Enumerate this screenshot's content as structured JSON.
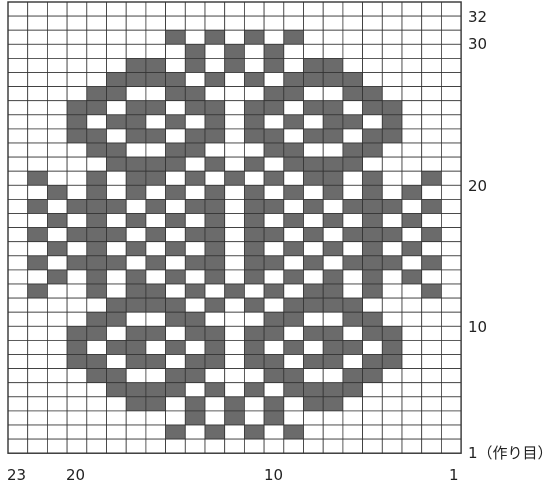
{
  "grid": {
    "columns": 23,
    "rows": 32,
    "filled_color": "#6b6b6b",
    "empty_color": "#ffffff",
    "line_color": "#333333",
    "pattern_top_to_bottom": [
      ".......................",
      ".......................",
      "........X.X.X.X........",
      ".........X.X.X.........",
      "......XX.X.X.X.XX......",
      ".....XXXX.X.X.XXXX.....",
      "....XX..XX...XX..XX....",
      "...XX.XX.XX.XX.XX.XX...",
      "...X.XX.X.X.X.X.XX.X...",
      "...XX.XX.XX.XX.XX.XX...",
      "....XX..XX...XX..XX....",
      ".....XXXX.X.X.XXXX.....",
      ".X..X.XX.X.X.X.XX.X..X.",
      "..X.X.X.X.X.X.X.X.X.X..",
      ".X.XXX.X.XX.XX.X.XXX.X.",
      "..X.X.X.X.X.X.X.X.X.X..",
      ".X.XXX.X.XX.XX.X.XXX.X.",
      "..X.X.X.X.X.X.X.X.X.X..",
      ".X.XXX.X.XX.XX.X.XXX.X.",
      "..X.X.X.X.X.X.X.X.X.X..",
      ".X..X.XX.X.X.X.XX.X..X.",
      ".....XXXX.X.X.XXXX.....",
      "....XX..XX...XX..XX....",
      "...XX.XX.XX.XX.XX.XX...",
      "...X.XX.X.X.X.X.XX.X...",
      "...XX.XX.XX.XX.XX.XX...",
      "....XX..XX...XX..XX....",
      ".....XXXX.X.X.XXXX.....",
      "......XX.X.X.X.XX......",
      ".........X.X.X.........",
      "........X.X.X.X........",
      "......................."
    ]
  },
  "labels": {
    "row_32": "32",
    "row_30": "30",
    "row_20": "20",
    "row_10": "10",
    "row_1": "1（作り目）",
    "col_23": "23",
    "col_20": "20",
    "col_10": "10",
    "col_1": "1"
  }
}
